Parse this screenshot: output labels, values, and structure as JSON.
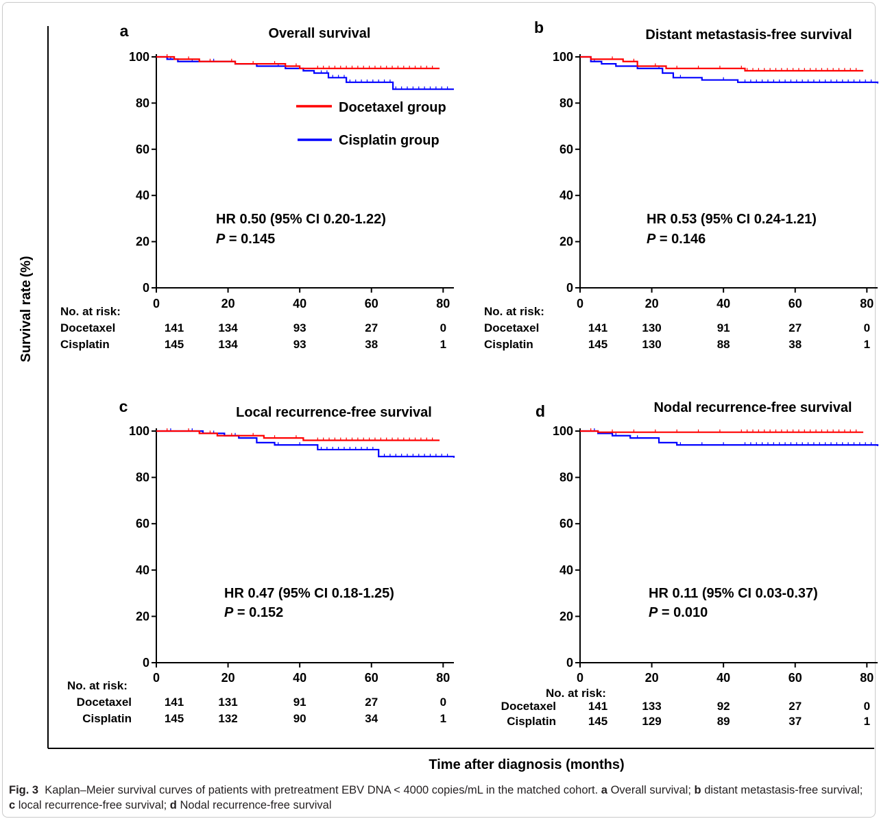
{
  "figure": {
    "y_axis_label": "Survival rate (%)",
    "x_axis_label": "Time after diagnosis (months)",
    "legend": [
      {
        "name": "Docetaxel group",
        "color": "#ff0000"
      },
      {
        "name": "Cisplatin group",
        "color": "#0000ff"
      }
    ],
    "risk_label": "No. at risk:"
  },
  "caption": {
    "fig_label": "Fig. 3",
    "text_main": "Kaplan–Meier survival curves of patients with pretreatment EBV DNA < 4000 copies/mL in the matched cohort.",
    "letter_a": "a",
    "part_a": "Overall survival;",
    "letter_b": "b",
    "part_b": "distant metastasis-free survival;",
    "letter_c": "c",
    "part_c": "local recurrence-free survival;",
    "letter_d": "d",
    "part_d": "Nodal recurrence-free survival"
  },
  "chart_data": [
    {
      "type": "line",
      "panel": "a",
      "title": "Overall survival",
      "xlabel": "Time after diagnosis (months)",
      "ylabel": "Survival rate (%)",
      "xlim": [
        0,
        83
      ],
      "ylim": [
        0,
        100
      ],
      "xticks": [
        0,
        20,
        40,
        60,
        80
      ],
      "yticks": [
        0,
        20,
        40,
        60,
        80,
        100
      ],
      "hr_text": "HR 0.50 (95% CI 0.20-1.22)",
      "p_value": "0.145",
      "series": [
        {
          "name": "Docetaxel group",
          "color": "#ff0000",
          "x": [
            0,
            5,
            12,
            22,
            30,
            36,
            40,
            79
          ],
          "y": [
            100,
            99,
            98,
            97,
            97,
            96,
            95,
            95
          ]
        },
        {
          "name": "Cisplatin group",
          "color": "#0000ff",
          "x": [
            0,
            3,
            6,
            15,
            22,
            28,
            36,
            41,
            44,
            48,
            53,
            66,
            83
          ],
          "y": [
            100,
            99,
            98,
            98,
            97,
            96,
            95,
            94,
            93,
            91,
            89,
            86,
            86
          ]
        }
      ],
      "risk_table": {
        "times": [
          0,
          20,
          40,
          60,
          80
        ],
        "rows": [
          {
            "label": "Docetaxel",
            "values": [
              "141",
              "134",
              "93",
              "27",
              "0"
            ]
          },
          {
            "label": "Cisplatin",
            "values": [
              "145",
              "134",
              "93",
              "38",
              "1"
            ]
          }
        ]
      }
    },
    {
      "type": "line",
      "panel": "b",
      "title": "Distant metastasis-free survival",
      "xlabel": "Time after diagnosis (months)",
      "ylabel": "Survival rate (%)",
      "xlim": [
        0,
        83
      ],
      "ylim": [
        0,
        100
      ],
      "xticks": [
        0,
        20,
        40,
        60,
        80
      ],
      "yticks": [
        0,
        20,
        40,
        60,
        80,
        100
      ],
      "hr_text": "HR 0.53 (95% CI 0.24-1.21)",
      "p_value": "0.146",
      "series": [
        {
          "name": "Docetaxel group",
          "color": "#ff0000",
          "x": [
            0,
            3,
            12,
            16,
            24,
            46,
            79
          ],
          "y": [
            100,
            99,
            98,
            96,
            95,
            94,
            94
          ]
        },
        {
          "name": "Cisplatin group",
          "color": "#0000ff",
          "x": [
            0,
            3,
            6,
            10,
            16,
            23,
            26,
            34,
            44,
            83
          ],
          "y": [
            100,
            98,
            97,
            96,
            95,
            93,
            91,
            90,
            89,
            88.5
          ]
        }
      ],
      "risk_table": {
        "times": [
          0,
          20,
          40,
          60,
          80
        ],
        "rows": [
          {
            "label": "Docetaxel",
            "values": [
              "141",
              "130",
              "91",
              "27",
              "0"
            ]
          },
          {
            "label": "Cisplatin",
            "values": [
              "145",
              "130",
              "88",
              "38",
              "1"
            ]
          }
        ]
      }
    },
    {
      "type": "line",
      "panel": "c",
      "title": "Local recurrence-free survival",
      "xlabel": "Time after diagnosis (months)",
      "ylabel": "Survival rate (%)",
      "xlim": [
        0,
        83
      ],
      "ylim": [
        0,
        100
      ],
      "xticks": [
        0,
        20,
        40,
        60,
        80
      ],
      "yticks": [
        0,
        20,
        40,
        60,
        80,
        100
      ],
      "hr_text": "HR 0.47 (95% CI 0.18-1.25)",
      "p_value": "0.152",
      "series": [
        {
          "name": "Docetaxel group",
          "color": "#ff0000",
          "x": [
            0,
            12,
            17,
            30,
            41,
            79
          ],
          "y": [
            100,
            99,
            98,
            97,
            96,
            96
          ]
        },
        {
          "name": "Cisplatin group",
          "color": "#0000ff",
          "x": [
            0,
            13,
            19,
            23,
            28,
            33,
            45,
            62,
            83
          ],
          "y": [
            100,
            99,
            98,
            97,
            95,
            94,
            92,
            89,
            88.5
          ]
        }
      ],
      "risk_table": {
        "times": [
          0,
          20,
          40,
          60,
          80
        ],
        "rows": [
          {
            "label": "Docetaxel",
            "values": [
              "141",
              "131",
              "91",
              "27",
              "0"
            ]
          },
          {
            "label": "Cisplatin",
            "values": [
              "145",
              "132",
              "90",
              "34",
              "1"
            ]
          }
        ]
      }
    },
    {
      "type": "line",
      "panel": "d",
      "title": "Nodal recurrence-free survival",
      "xlabel": "Time after diagnosis (months)",
      "ylabel": "Survival rate (%)",
      "xlim": [
        0,
        83
      ],
      "ylim": [
        0,
        100
      ],
      "xticks": [
        0,
        20,
        40,
        60,
        80
      ],
      "yticks": [
        0,
        20,
        40,
        60,
        80,
        100
      ],
      "hr_text": "HR 0.11 (95% CI 0.03-0.37)",
      "p_value": "0.010",
      "series": [
        {
          "name": "Docetaxel group",
          "color": "#ff0000",
          "x": [
            0,
            5,
            79
          ],
          "y": [
            100,
            99.5,
            99.5
          ]
        },
        {
          "name": "Cisplatin group",
          "color": "#0000ff",
          "x": [
            0,
            5,
            9,
            14,
            22,
            27,
            83
          ],
          "y": [
            100,
            99,
            98,
            97,
            95,
            94,
            93.5
          ]
        }
      ],
      "risk_table": {
        "times": [
          0,
          20,
          40,
          60,
          80
        ],
        "rows": [
          {
            "label": "Docetaxel",
            "values": [
              "141",
              "133",
              "92",
              "27",
              "0"
            ]
          },
          {
            "label": "Cisplatin",
            "values": [
              "145",
              "129",
              "89",
              "37",
              "1"
            ]
          }
        ]
      }
    }
  ]
}
